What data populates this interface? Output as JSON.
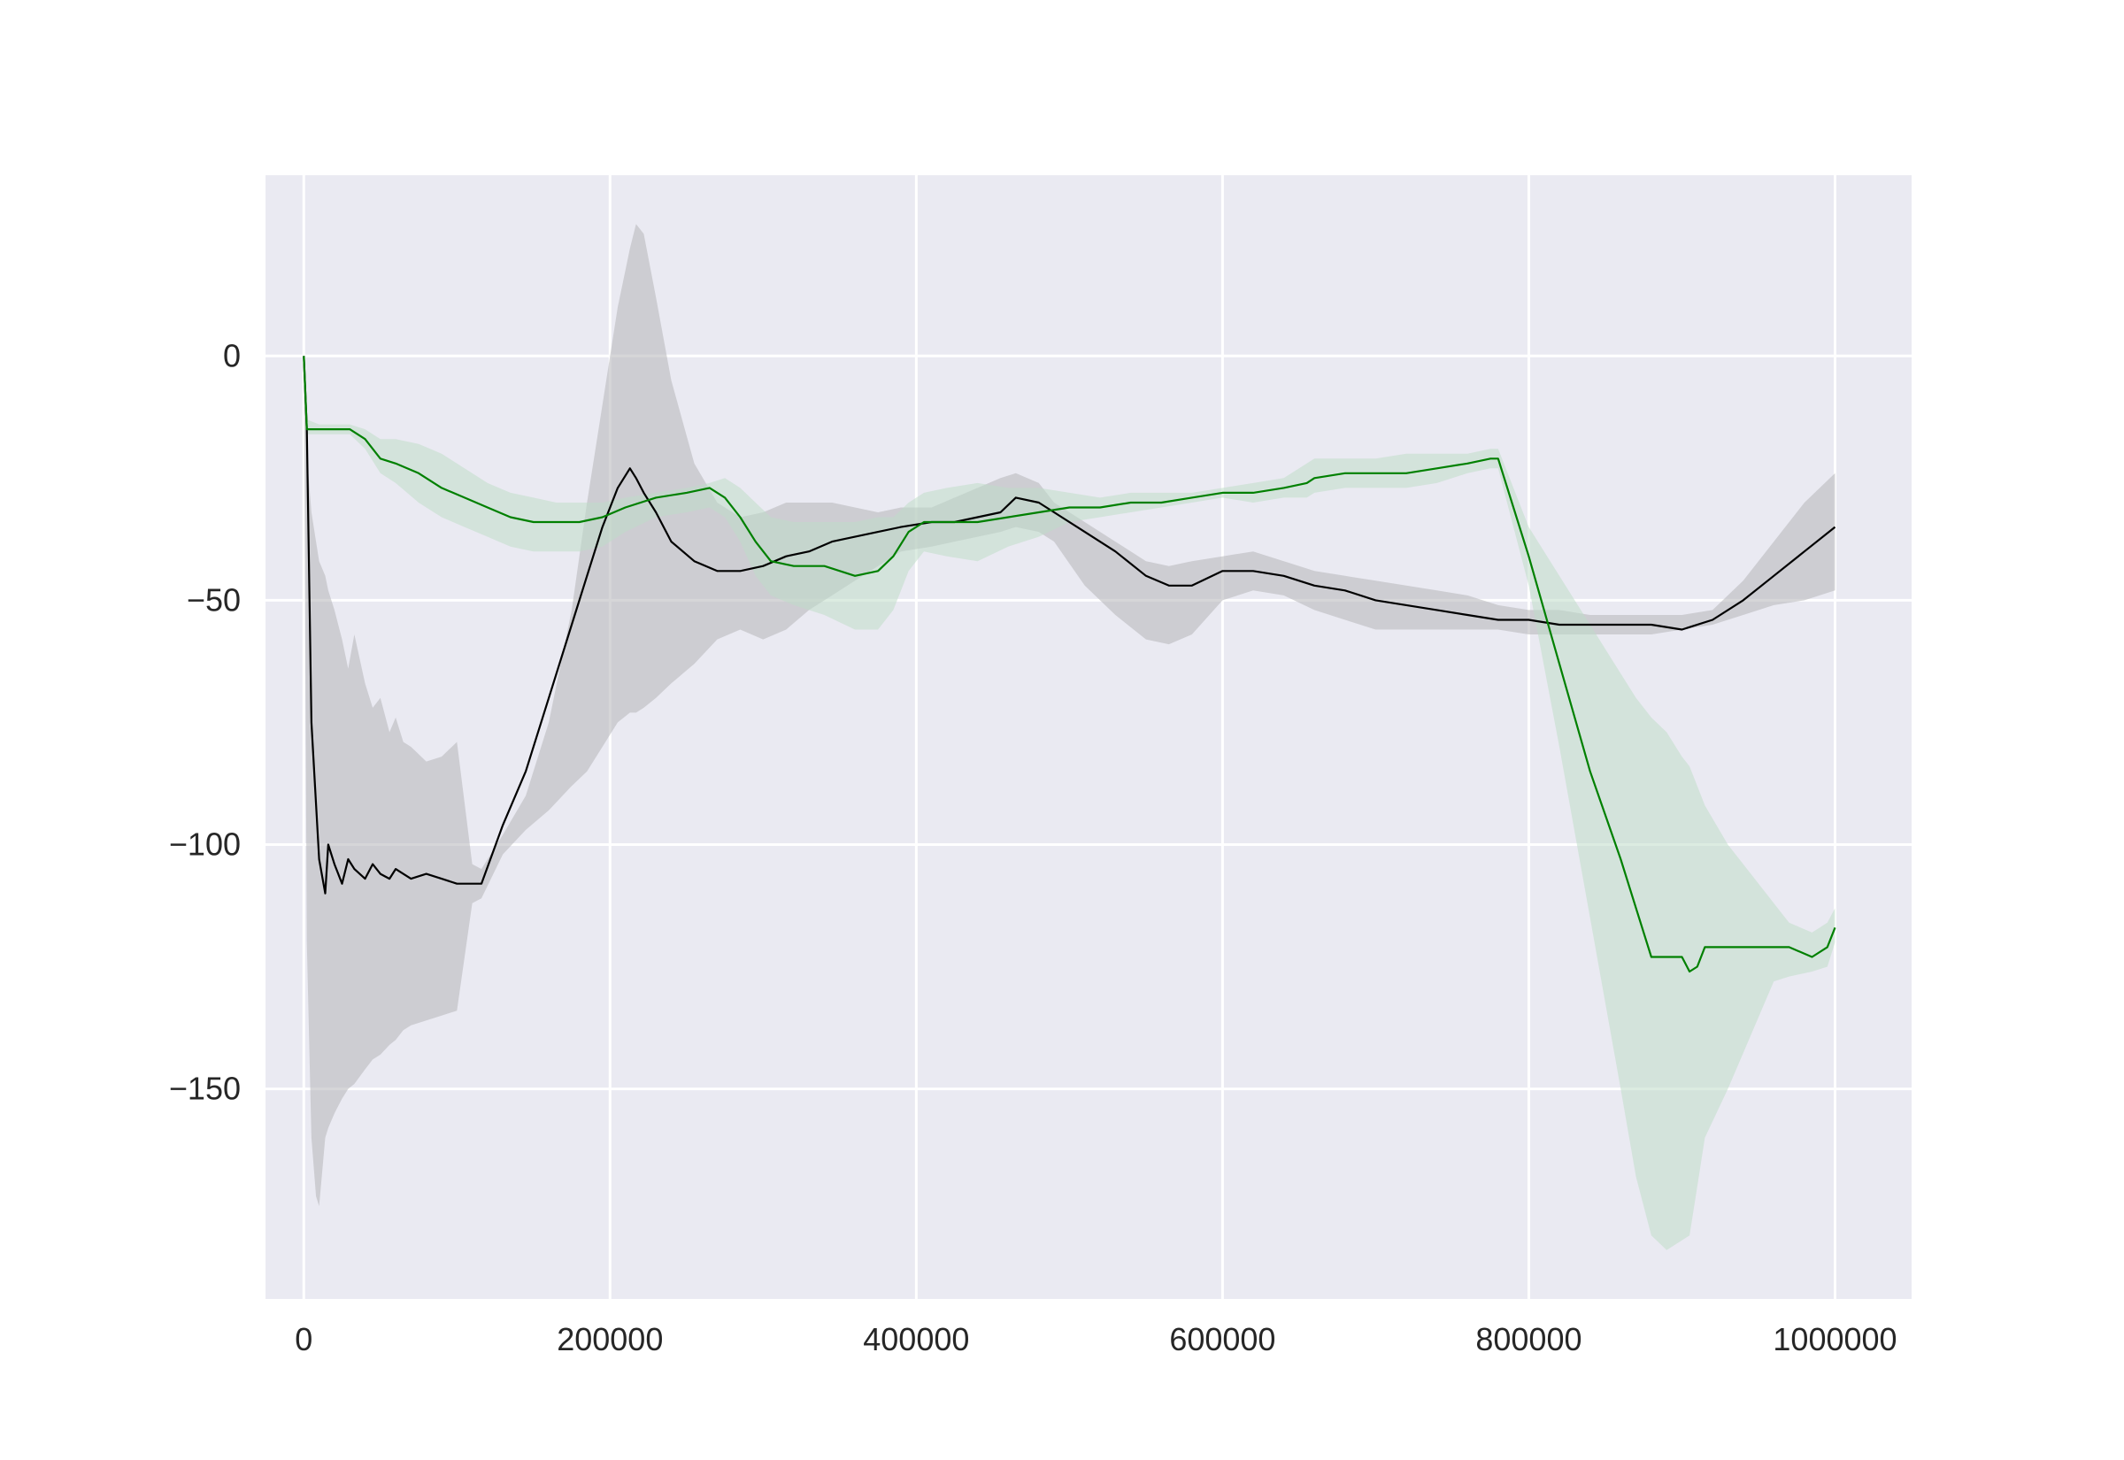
{
  "chart_data": {
    "type": "line",
    "title": "",
    "xlabel": "",
    "ylabel": "",
    "xlim": [
      -25000,
      1050000
    ],
    "ylim": [
      -193,
      37
    ],
    "grid": true,
    "legend": "none",
    "x_ticks": [
      0,
      200000,
      400000,
      600000,
      800000,
      1000000
    ],
    "x_tick_labels": [
      "0",
      "200000",
      "400000",
      "600000",
      "800000",
      "1000000"
    ],
    "y_ticks": [
      0,
      -50,
      -100,
      -150
    ],
    "y_tick_labels": [
      "0",
      "−50",
      "−100",
      "−150"
    ],
    "colors": {
      "plot_background": "#eaeaf2",
      "grid": "#ffffff",
      "series_black": "#000000",
      "series_green": "#008000",
      "band_black": "#b4b4b8",
      "band_green": "#bfdcc8"
    },
    "series": [
      {
        "color": "#000000",
        "x": [
          0,
          2000,
          5000,
          10000,
          14000,
          16000,
          20000,
          25000,
          29000,
          33000,
          40000,
          45000,
          50000,
          56000,
          60000,
          65000,
          70000,
          80000,
          90000,
          100000,
          110000,
          116000,
          130000,
          145000,
          160000,
          175000,
          185000,
          195000,
          205000,
          213000,
          217000,
          222000,
          230000,
          240000,
          255000,
          270000,
          285000,
          300000,
          315000,
          330000,
          345000,
          360000,
          375000,
          390000,
          410000,
          425000,
          440000,
          455000,
          465000,
          480000,
          490000,
          510000,
          530000,
          550000,
          565000,
          580000,
          600000,
          620000,
          640000,
          660000,
          680000,
          700000,
          720000,
          740000,
          760000,
          780000,
          800000,
          820000,
          840000,
          860000,
          880000,
          900000,
          920000,
          940000,
          960000,
          980000,
          1000000
        ],
        "y": [
          0,
          -15,
          -75,
          -103,
          -110,
          -100,
          -104,
          -108,
          -103,
          -105,
          -107,
          -104,
          -106,
          -107,
          -105,
          -106,
          -107,
          -106,
          -107,
          -108,
          -108,
          -108,
          -96,
          -85,
          -70,
          -55,
          -45,
          -35,
          -27,
          -23,
          -25,
          -28,
          -32,
          -38,
          -42,
          -44,
          -44,
          -43,
          -41,
          -40,
          -38,
          -37,
          -36,
          -35,
          -34,
          -34,
          -33,
          -32,
          -29,
          -30,
          -32,
          -36,
          -40,
          -45,
          -47,
          -47,
          -44,
          -44,
          -45,
          -47,
          -48,
          -50,
          -51,
          -52,
          -53,
          -54,
          -54,
          -55,
          -55,
          -55,
          -55,
          -56,
          -54,
          -50,
          -45,
          -40,
          -35
        ]
      },
      {
        "color": "#008000",
        "x": [
          0,
          2000,
          10000,
          30000,
          40000,
          50000,
          60000,
          75000,
          90000,
          105000,
          120000,
          135000,
          150000,
          165000,
          180000,
          195000,
          210000,
          230000,
          250000,
          265000,
          275000,
          285000,
          295000,
          305000,
          320000,
          340000,
          360000,
          375000,
          385000,
          395000,
          405000,
          420000,
          440000,
          460000,
          480000,
          500000,
          520000,
          540000,
          560000,
          580000,
          600000,
          620000,
          640000,
          655000,
          660000,
          680000,
          700000,
          720000,
          740000,
          760000,
          775000,
          780000,
          790000,
          800000,
          820000,
          840000,
          860000,
          870000,
          880000,
          890000,
          900000,
          905000,
          910000,
          915000,
          930000,
          960000,
          970000,
          985000,
          995000,
          1000000
        ],
        "y": [
          0,
          -15,
          -15,
          -15,
          -17,
          -21,
          -22,
          -24,
          -27,
          -29,
          -31,
          -33,
          -34,
          -34,
          -34,
          -33,
          -31,
          -29,
          -28,
          -27,
          -29,
          -33,
          -38,
          -42,
          -43,
          -43,
          -45,
          -44,
          -41,
          -36,
          -34,
          -34,
          -34,
          -33,
          -32,
          -31,
          -31,
          -30,
          -30,
          -29,
          -28,
          -28,
          -27,
          -26,
          -25,
          -24,
          -24,
          -24,
          -23,
          -22,
          -21,
          -21,
          -31,
          -41,
          -63,
          -85,
          -103,
          -113,
          -123,
          -123,
          -123,
          -126,
          -125,
          -121,
          -121,
          -121,
          -121,
          -123,
          -121,
          -117
        ]
      }
    ],
    "bands": [
      {
        "color": "#b4b4b8",
        "x": [
          0,
          2000,
          5000,
          8000,
          10000,
          14000,
          16000,
          20000,
          25000,
          29000,
          33000,
          40000,
          45000,
          50000,
          56000,
          60000,
          65000,
          70000,
          80000,
          90000,
          100000,
          110000,
          116000,
          130000,
          145000,
          160000,
          175000,
          185000,
          195000,
          205000,
          213000,
          217000,
          222000,
          230000,
          240000,
          255000,
          270000,
          285000,
          300000,
          315000,
          330000,
          345000,
          360000,
          375000,
          390000,
          410000,
          425000,
          440000,
          455000,
          465000,
          480000,
          490000,
          510000,
          530000,
          550000,
          565000,
          580000,
          600000,
          620000,
          640000,
          660000,
          680000,
          700000,
          720000,
          740000,
          760000,
          780000,
          800000,
          820000,
          840000,
          860000,
          880000,
          900000,
          920000,
          940000,
          960000,
          980000,
          1000000
        ],
        "upper": [
          0,
          -20,
          -32,
          -38,
          -42,
          -45,
          -48,
          -52,
          -58,
          -64,
          -57,
          -67,
          -72,
          -70,
          -77,
          -74,
          -79,
          -80,
          -83,
          -82,
          -79,
          -104,
          -105,
          -98,
          -90,
          -75,
          -52,
          -30,
          -10,
          10,
          22,
          27,
          25,
          12,
          -5,
          -22,
          -30,
          -33,
          -32,
          -30,
          -30,
          -30,
          -31,
          -32,
          -31,
          -31,
          -29,
          -27,
          -25,
          -24,
          -26,
          -30,
          -34,
          -38,
          -42,
          -43,
          -42,
          -41,
          -40,
          -42,
          -44,
          -45,
          -46,
          -47,
          -48,
          -49,
          -51,
          -52,
          -52,
          -53,
          -53,
          -53,
          -53,
          -52,
          -46,
          -38,
          -30,
          -24
        ],
        "lower": [
          0,
          -120,
          -160,
          -172,
          -174,
          -160,
          -158,
          -155,
          -152,
          -150,
          -149,
          -146,
          -144,
          -143,
          -141,
          -140,
          -138,
          -137,
          -136,
          -135,
          -134,
          -112,
          -111,
          -102,
          -97,
          -93,
          -88,
          -85,
          -80,
          -75,
          -73,
          -73,
          -72,
          -70,
          -67,
          -63,
          -58,
          -56,
          -58,
          -56,
          -52,
          -49,
          -46,
          -43,
          -40,
          -39,
          -38,
          -37,
          -36,
          -35,
          -36,
          -38,
          -47,
          -53,
          -58,
          -59,
          -57,
          -50,
          -48,
          -49,
          -52,
          -54,
          -56,
          -56,
          -56,
          -56,
          -56,
          -57,
          -57,
          -57,
          -57,
          -57,
          -56,
          -55,
          -53,
          -51,
          -50,
          -48
        ]
      },
      {
        "color": "#bfdcc8",
        "x": [
          0,
          2000,
          10000,
          30000,
          40000,
          50000,
          60000,
          75000,
          90000,
          105000,
          120000,
          135000,
          150000,
          165000,
          180000,
          195000,
          210000,
          230000,
          250000,
          265000,
          275000,
          285000,
          295000,
          305000,
          320000,
          340000,
          360000,
          375000,
          385000,
          395000,
          405000,
          420000,
          440000,
          460000,
          480000,
          500000,
          520000,
          540000,
          560000,
          580000,
          600000,
          620000,
          640000,
          655000,
          660000,
          680000,
          700000,
          720000,
          740000,
          760000,
          775000,
          780000,
          790000,
          800000,
          820000,
          840000,
          860000,
          870000,
          880000,
          890000,
          900000,
          905000,
          910000,
          915000,
          930000,
          960000,
          970000,
          985000,
          995000,
          1000000
        ],
        "upper": [
          0,
          -13,
          -14,
          -14,
          -15,
          -17,
          -17,
          -18,
          -20,
          -23,
          -26,
          -28,
          -29,
          -30,
          -30,
          -30,
          -29,
          -28,
          -27,
          -26,
          -25,
          -27,
          -30,
          -33,
          -34,
          -34,
          -34,
          -33,
          -33,
          -30,
          -28,
          -27,
          -26,
          -27,
          -27,
          -28,
          -29,
          -28,
          -28,
          -28,
          -27,
          -26,
          -25,
          -22,
          -21,
          -21,
          -21,
          -20,
          -20,
          -20,
          -19,
          -19,
          -27,
          -35,
          -45,
          -55,
          -65,
          -70,
          -74,
          -77,
          -82,
          -84,
          -88,
          -92,
          -100,
          -112,
          -116,
          -118,
          -116,
          -113
        ],
        "lower": [
          0,
          -16,
          -16,
          -16,
          -19,
          -24,
          -26,
          -30,
          -33,
          -35,
          -37,
          -39,
          -40,
          -40,
          -40,
          -39,
          -36,
          -33,
          -32,
          -31,
          -33,
          -38,
          -45,
          -49,
          -51,
          -53,
          -56,
          -56,
          -52,
          -44,
          -40,
          -41,
          -42,
          -39,
          -37,
          -34,
          -33,
          -32,
          -31,
          -30,
          -29,
          -30,
          -29,
          -29,
          -28,
          -27,
          -27,
          -27,
          -26,
          -24,
          -23,
          -23,
          -35,
          -47,
          -80,
          -115,
          -150,
          -168,
          -180,
          -183,
          -181,
          -180,
          -170,
          -160,
          -150,
          -128,
          -127,
          -126,
          -125,
          -120
        ]
      }
    ]
  }
}
